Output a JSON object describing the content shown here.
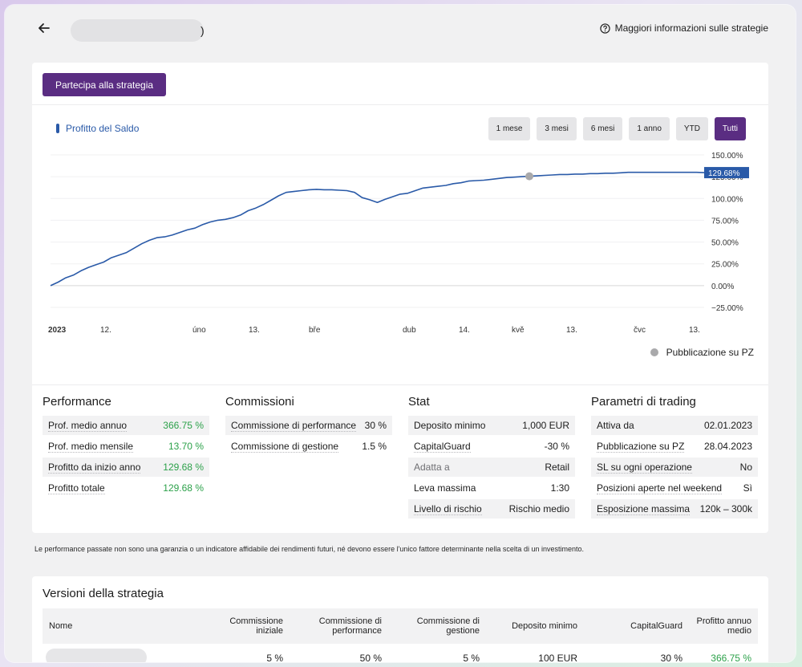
{
  "header": {
    "title_tail": ")",
    "info_link": "Maggiori informazioni sulle strategie"
  },
  "actions": {
    "join": "Partecipa alla strategia"
  },
  "chart_controls": {
    "legend": "Profitto del Saldo",
    "ranges": [
      "1 mese",
      "3 mesi",
      "6 mesi",
      "1 anno",
      "YTD",
      "Tutti"
    ],
    "active_range": "Tutti"
  },
  "chart_data": {
    "type": "line",
    "series": [
      {
        "name": "Profitto del Saldo",
        "color": "#2a5aa8",
        "y": [
          0,
          4,
          9,
          12,
          17,
          21,
          24,
          27,
          32,
          35,
          38,
          43,
          48,
          52,
          55,
          56,
          58,
          61,
          64,
          66,
          70,
          73,
          75,
          76,
          78,
          81,
          86,
          89,
          93,
          98,
          103,
          107,
          108,
          109,
          110,
          110.5,
          110,
          110,
          109.5,
          109,
          107,
          101,
          98.5,
          95.5,
          99,
          102,
          105,
          106,
          109,
          112,
          113,
          114,
          115,
          117,
          118,
          120,
          120.5,
          121,
          122,
          123,
          124,
          124.5,
          125,
          125.5,
          126,
          126.5,
          127,
          127.5,
          127.5,
          128,
          128,
          128.5,
          128.5,
          129,
          129,
          129.5,
          130,
          130,
          130,
          130,
          130,
          130,
          130,
          130,
          130,
          130,
          129.68
        ]
      }
    ],
    "current_value_label": "129.68%",
    "publication_marker_index": 63,
    "y_ticks": [
      "150.00%",
      "125.00%",
      "100.00%",
      "75.00%",
      "50.00%",
      "25.00%",
      "0.00%",
      "−25.00%"
    ],
    "ylim": [
      -25,
      150
    ],
    "x_ticks": [
      "2023",
      "12.",
      "úno",
      "13.",
      "bře",
      "dub",
      "14.",
      "kvě",
      "13.",
      "čvc",
      "13."
    ],
    "grid": true,
    "legend_position": "bottom-right",
    "marker_legend": "Pubblicazione su PZ",
    "marker_color": "#a9a9ab"
  },
  "performance": {
    "title": "Performance",
    "rows": [
      {
        "label": "Prof. medio annuo",
        "value": "366.75 %"
      },
      {
        "label": "Prof. medio mensile",
        "value": "13.70 %"
      },
      {
        "label": "Profitto da inizio anno",
        "value": "129.68 %"
      },
      {
        "label": "Profitto totale",
        "value": "129.68 %"
      }
    ]
  },
  "commissions": {
    "title": "Commissioni",
    "rows": [
      {
        "label": "Commissione di performance",
        "value": "30 %"
      },
      {
        "label": "Commissione di gestione",
        "value": "1.5 %"
      }
    ]
  },
  "stat": {
    "title": "Stat",
    "rows": [
      {
        "label": "Deposito minimo",
        "value": "1,000 EUR"
      },
      {
        "label": "CapitalGuard",
        "value": "-30 %"
      },
      {
        "label": "Adatta a",
        "value": "Retail"
      },
      {
        "label": "Leva massima",
        "value": "1:30"
      },
      {
        "label": "Livello di rischio",
        "value": "Rischio medio"
      }
    ]
  },
  "trading": {
    "title": "Parametri di trading",
    "rows": [
      {
        "label": "Attiva da",
        "value": "02.01.2023"
      },
      {
        "label": "Pubblicazione su PZ",
        "value": "28.04.2023"
      },
      {
        "label": "SL su ogni operazione",
        "value": "No"
      },
      {
        "label": "Posizioni aperte nel weekend",
        "value": "Sì"
      },
      {
        "label": "Esposizione massima",
        "value": "120k – 300k"
      }
    ]
  },
  "disclaimer": "Le performance passate non sono una garanzia o un indicatore affidabile dei rendimenti futuri, né devono essere l'unico fattore determinante nella scelta di un investimento.",
  "versions": {
    "title": "Versioni della strategia",
    "headers": {
      "name": "Nome",
      "init_fee_1": "Commissione",
      "init_fee_2": "iniziale",
      "perf_fee_1": "Commissione di",
      "perf_fee_2": "performance",
      "mgmt_fee_1": "Commissione di",
      "mgmt_fee_2": "gestione",
      "min_deposit": "Deposito minimo",
      "capital_guard": "CapitalGuard",
      "avg_profit_1": "Profitto annuo",
      "avg_profit_2": "medio"
    },
    "row": {
      "init_fee": "5 %",
      "perf_fee": "50 %",
      "mgmt_fee": "5 %",
      "min_deposit": "100 EUR",
      "capital_guard": "30 %",
      "avg_profit": "366.75 %"
    }
  }
}
